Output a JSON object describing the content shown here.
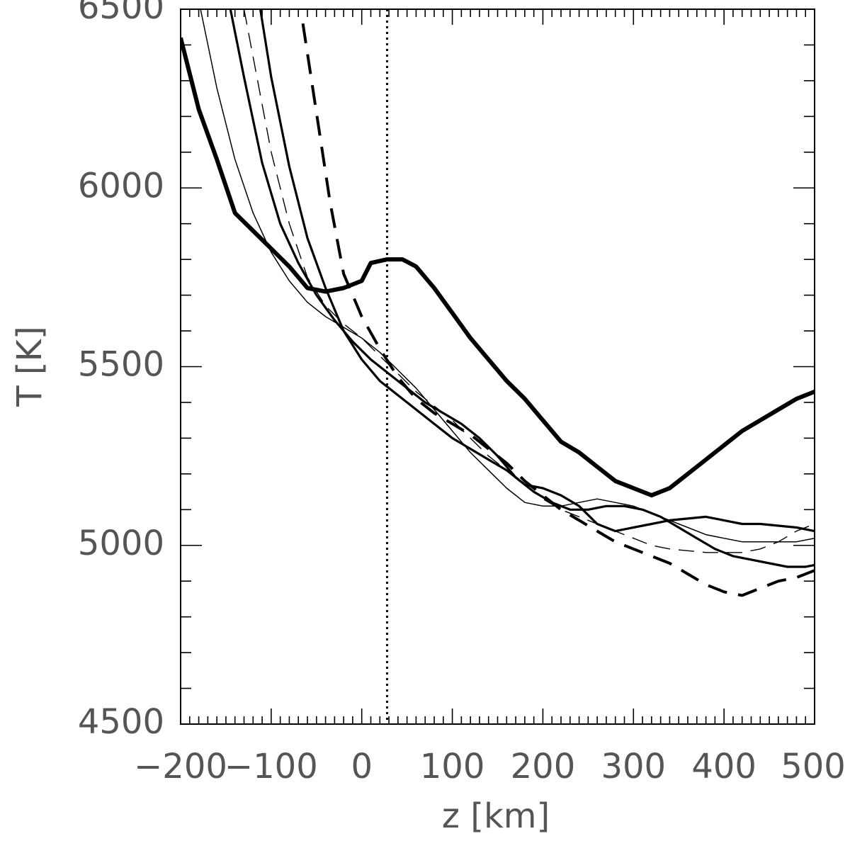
{
  "chart_data": {
    "type": "line",
    "title": "",
    "xlabel": "z [km]",
    "ylabel": "T [K]",
    "xlim": [
      -200,
      500
    ],
    "ylim": [
      4500,
      6500
    ],
    "x_ticks": [
      -200,
      -100,
      0,
      100,
      200,
      300,
      400,
      500
    ],
    "x_tick_labels": [
      "−200",
      "−100",
      "0",
      "100",
      "200",
      "300",
      "400",
      "500"
    ],
    "y_ticks": [
      4500,
      5000,
      5500,
      6000,
      6500
    ],
    "y_tick_labels": [
      "4500",
      "5000",
      "5500",
      "6000",
      "6500"
    ],
    "grid": false,
    "legend": "none",
    "reference_lines": [
      {
        "orientation": "vertical",
        "x": 28,
        "style": "dotted"
      }
    ],
    "series": [
      {
        "style": "solid-extra-thick",
        "points": [
          [
            -200,
            6420
          ],
          [
            -180,
            6220
          ],
          [
            -160,
            6080
          ],
          [
            -140,
            5930
          ],
          [
            -120,
            5880
          ],
          [
            -100,
            5830
          ],
          [
            -80,
            5780
          ],
          [
            -60,
            5720
          ],
          [
            -40,
            5710
          ],
          [
            -20,
            5720
          ],
          [
            0,
            5740
          ],
          [
            10,
            5790
          ],
          [
            28,
            5800
          ],
          [
            45,
            5800
          ],
          [
            60,
            5780
          ],
          [
            80,
            5720
          ],
          [
            100,
            5650
          ],
          [
            120,
            5580
          ],
          [
            140,
            5520
          ],
          [
            160,
            5460
          ],
          [
            180,
            5410
          ],
          [
            200,
            5350
          ],
          [
            220,
            5290
          ],
          [
            240,
            5260
          ],
          [
            260,
            5220
          ],
          [
            280,
            5180
          ],
          [
            300,
            5160
          ],
          [
            320,
            5140
          ],
          [
            340,
            5160
          ],
          [
            360,
            5200
          ],
          [
            380,
            5240
          ],
          [
            400,
            5280
          ],
          [
            420,
            5320
          ],
          [
            440,
            5350
          ],
          [
            460,
            5380
          ],
          [
            480,
            5410
          ],
          [
            500,
            5430
          ]
        ]
      },
      {
        "style": "solid-medium",
        "points": [
          [
            -112,
            6500
          ],
          [
            -100,
            6310
          ],
          [
            -80,
            6060
          ],
          [
            -60,
            5860
          ],
          [
            -40,
            5720
          ],
          [
            -20,
            5600
          ],
          [
            0,
            5520
          ],
          [
            20,
            5460
          ],
          [
            40,
            5420
          ],
          [
            60,
            5380
          ],
          [
            80,
            5340
          ],
          [
            100,
            5300
          ],
          [
            120,
            5270
          ],
          [
            140,
            5240
          ],
          [
            160,
            5210
          ],
          [
            180,
            5170
          ],
          [
            200,
            5160
          ],
          [
            220,
            5140
          ],
          [
            240,
            5110
          ],
          [
            260,
            5060
          ],
          [
            280,
            5040
          ],
          [
            300,
            5050
          ],
          [
            320,
            5060
          ],
          [
            340,
            5070
          ],
          [
            360,
            5075
          ],
          [
            380,
            5080
          ],
          [
            400,
            5070
          ],
          [
            420,
            5060
          ],
          [
            440,
            5060
          ],
          [
            460,
            5055
          ],
          [
            480,
            5050
          ],
          [
            500,
            5040
          ]
        ]
      },
      {
        "style": "solid-medium",
        "points": [
          [
            -145,
            6500
          ],
          [
            -130,
            6310
          ],
          [
            -110,
            6070
          ],
          [
            -90,
            5900
          ],
          [
            -70,
            5790
          ],
          [
            -50,
            5700
          ],
          [
            -30,
            5630
          ],
          [
            -10,
            5570
          ],
          [
            10,
            5520
          ],
          [
            30,
            5480
          ],
          [
            50,
            5440
          ],
          [
            70,
            5400
          ],
          [
            90,
            5370
          ],
          [
            110,
            5340
          ],
          [
            130,
            5300
          ],
          [
            150,
            5250
          ],
          [
            170,
            5190
          ],
          [
            190,
            5150
          ],
          [
            210,
            5120
          ],
          [
            230,
            5100
          ],
          [
            250,
            5100
          ],
          [
            270,
            5110
          ],
          [
            290,
            5110
          ],
          [
            310,
            5100
          ],
          [
            330,
            5080
          ],
          [
            350,
            5050
          ],
          [
            370,
            5020
          ],
          [
            390,
            4990
          ],
          [
            410,
            4970
          ],
          [
            430,
            4960
          ],
          [
            450,
            4950
          ],
          [
            470,
            4940
          ],
          [
            490,
            4940
          ],
          [
            500,
            4945
          ]
        ]
      },
      {
        "style": "solid-thin",
        "points": [
          [
            -178,
            6500
          ],
          [
            -160,
            6280
          ],
          [
            -140,
            6080
          ],
          [
            -120,
            5930
          ],
          [
            -100,
            5820
          ],
          [
            -80,
            5740
          ],
          [
            -60,
            5680
          ],
          [
            -40,
            5640
          ],
          [
            -20,
            5610
          ],
          [
            0,
            5580
          ],
          [
            20,
            5540
          ],
          [
            40,
            5490
          ],
          [
            60,
            5440
          ],
          [
            80,
            5380
          ],
          [
            100,
            5320
          ],
          [
            120,
            5260
          ],
          [
            140,
            5210
          ],
          [
            160,
            5160
          ],
          [
            180,
            5120
          ],
          [
            200,
            5110
          ],
          [
            220,
            5110
          ],
          [
            240,
            5120
          ],
          [
            260,
            5130
          ],
          [
            280,
            5120
          ],
          [
            300,
            5110
          ],
          [
            320,
            5090
          ],
          [
            340,
            5070
          ],
          [
            360,
            5050
          ],
          [
            380,
            5030
          ],
          [
            400,
            5020
          ],
          [
            420,
            5010
          ],
          [
            440,
            5010
          ],
          [
            460,
            5010
          ],
          [
            480,
            5010
          ],
          [
            500,
            5020
          ]
        ]
      },
      {
        "style": "dashed-thin",
        "points": [
          [
            -130,
            6500
          ],
          [
            -115,
            6300
          ],
          [
            -100,
            6100
          ],
          [
            -80,
            5900
          ],
          [
            -60,
            5750
          ],
          [
            -40,
            5670
          ],
          [
            -20,
            5620
          ],
          [
            0,
            5580
          ],
          [
            20,
            5530
          ],
          [
            40,
            5480
          ],
          [
            60,
            5430
          ],
          [
            80,
            5390
          ],
          [
            100,
            5350
          ],
          [
            120,
            5300
          ],
          [
            140,
            5250
          ],
          [
            160,
            5210
          ],
          [
            180,
            5170
          ],
          [
            200,
            5130
          ],
          [
            220,
            5100
          ],
          [
            240,
            5080
          ],
          [
            260,
            5060
          ],
          [
            280,
            5040
          ],
          [
            300,
            5020
          ],
          [
            320,
            5000
          ],
          [
            340,
            4990
          ],
          [
            360,
            4985
          ],
          [
            380,
            4980
          ],
          [
            400,
            4980
          ],
          [
            420,
            4980
          ],
          [
            440,
            4990
          ],
          [
            460,
            5010
          ],
          [
            480,
            5040
          ],
          [
            500,
            5060
          ]
        ]
      },
      {
        "style": "dashed-thick",
        "points": [
          [
            -65,
            6460
          ],
          [
            -50,
            6210
          ],
          [
            -35,
            5960
          ],
          [
            -20,
            5760
          ],
          [
            0,
            5640
          ],
          [
            20,
            5550
          ],
          [
            40,
            5470
          ],
          [
            60,
            5410
          ],
          [
            80,
            5370
          ],
          [
            100,
            5340
          ],
          [
            120,
            5310
          ],
          [
            140,
            5270
          ],
          [
            160,
            5230
          ],
          [
            180,
            5180
          ],
          [
            200,
            5140
          ],
          [
            220,
            5100
          ],
          [
            240,
            5070
          ],
          [
            260,
            5040
          ],
          [
            280,
            5010
          ],
          [
            300,
            4990
          ],
          [
            320,
            4970
          ],
          [
            340,
            4950
          ],
          [
            360,
            4920
          ],
          [
            380,
            4890
          ],
          [
            400,
            4870
          ],
          [
            420,
            4860
          ],
          [
            440,
            4880
          ],
          [
            460,
            4900
          ],
          [
            480,
            4910
          ],
          [
            500,
            4930
          ]
        ]
      }
    ]
  }
}
